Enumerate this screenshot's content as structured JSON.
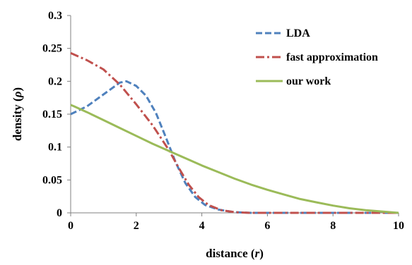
{
  "chart_data": {
    "type": "line",
    "title": "",
    "xlabel": {
      "prefix": "distance (",
      "symbol": "r",
      "suffix": ")"
    },
    "ylabel": {
      "prefix": "density (",
      "symbol": "ρ",
      "suffix": ")"
    },
    "xlim": [
      0,
      10
    ],
    "ylim": [
      0,
      0.3
    ],
    "x_ticks": [
      "0",
      "2",
      "4",
      "6",
      "8",
      "10"
    ],
    "y_ticks": [
      "0",
      "0.05",
      "0.1",
      "0.15",
      "0.2",
      "0.25",
      "0.3"
    ],
    "grid": false,
    "legend_position": "top-right",
    "series": [
      {
        "name": "LDA",
        "color": "#4f81bd",
        "style": "dashed",
        "points": [
          [
            0,
            0.15
          ],
          [
            0.5,
            0.162
          ],
          [
            1,
            0.18
          ],
          [
            1.5,
            0.198
          ],
          [
            1.7,
            0.2
          ],
          [
            2,
            0.193
          ],
          [
            2.3,
            0.178
          ],
          [
            2.6,
            0.152
          ],
          [
            2.9,
            0.115
          ],
          [
            3.2,
            0.077
          ],
          [
            3.5,
            0.045
          ],
          [
            3.8,
            0.024
          ],
          [
            4.1,
            0.012
          ],
          [
            4.5,
            0.005
          ],
          [
            5,
            0.001
          ],
          [
            5.5,
            0
          ],
          [
            6,
            0
          ],
          [
            7,
            0
          ],
          [
            8,
            0
          ],
          [
            9,
            0
          ],
          [
            10,
            0
          ]
        ]
      },
      {
        "name": "fast approximation",
        "color": "#c0504d",
        "style": "dash-dot",
        "points": [
          [
            0,
            0.243
          ],
          [
            0.5,
            0.232
          ],
          [
            1,
            0.218
          ],
          [
            1.5,
            0.195
          ],
          [
            2,
            0.165
          ],
          [
            2.5,
            0.133
          ],
          [
            3,
            0.095
          ],
          [
            3.3,
            0.068
          ],
          [
            3.6,
            0.043
          ],
          [
            3.9,
            0.024
          ],
          [
            4.2,
            0.012
          ],
          [
            4.6,
            0.004
          ],
          [
            5,
            0.001
          ],
          [
            5.5,
            0
          ],
          [
            6,
            0
          ],
          [
            7,
            0
          ],
          [
            8,
            0
          ],
          [
            9,
            0
          ],
          [
            10,
            0
          ]
        ]
      },
      {
        "name": "our work",
        "color": "#9bbb59",
        "style": "solid",
        "points": [
          [
            0,
            0.164
          ],
          [
            0.1,
            0.162
          ],
          [
            0.5,
            0.153
          ],
          [
            1,
            0.141
          ],
          [
            1.5,
            0.129
          ],
          [
            2,
            0.117
          ],
          [
            2.5,
            0.105
          ],
          [
            3,
            0.094
          ],
          [
            3.5,
            0.083
          ],
          [
            4,
            0.072
          ],
          [
            4.5,
            0.062
          ],
          [
            5,
            0.052
          ],
          [
            5.5,
            0.043
          ],
          [
            6,
            0.035
          ],
          [
            6.5,
            0.028
          ],
          [
            7,
            0.021
          ],
          [
            7.5,
            0.016
          ],
          [
            8,
            0.011
          ],
          [
            8.5,
            0.007
          ],
          [
            9,
            0.004
          ],
          [
            9.5,
            0.002
          ],
          [
            10,
            0
          ]
        ]
      }
    ]
  }
}
